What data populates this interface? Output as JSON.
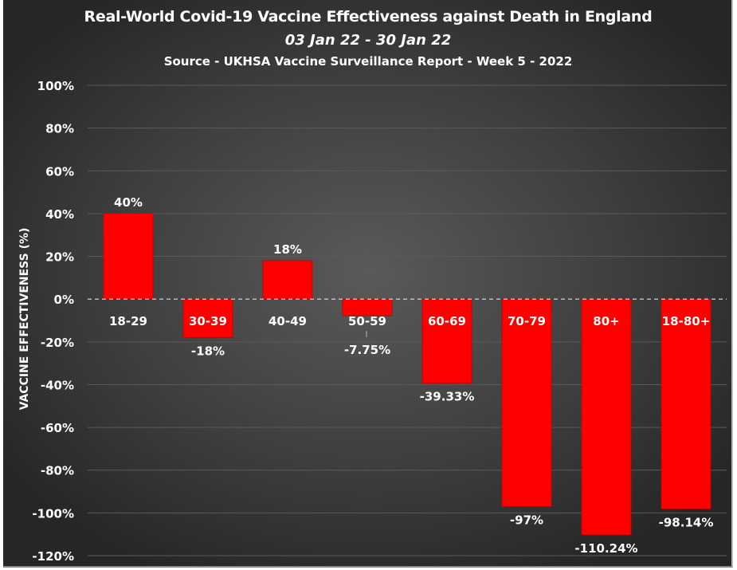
{
  "chart_data": {
    "type": "bar",
    "title": "Real-World Covid-19 Vaccine Effectiveness against Death in England",
    "subtitle": "03 Jan 22 - 30 Jan 22",
    "source": "Source - UKHSA Vaccine Surveillance Report - Week 5 - 2022",
    "xlabel": "",
    "ylabel": "VACCINE EFFECTIVENESS (%)",
    "ylim": [
      -120,
      100
    ],
    "yticks": [
      100,
      80,
      60,
      40,
      20,
      0,
      -20,
      -40,
      -60,
      -80,
      -100,
      -120
    ],
    "ytick_labels": [
      "100%",
      "80%",
      "60%",
      "40%",
      "20%",
      "0%",
      "-20%",
      "-40%",
      "-60%",
      "-80%",
      "-100%",
      "-120%"
    ],
    "grid": true,
    "categories": [
      "18-29",
      "30-39",
      "40-49",
      "50-59",
      "60-69",
      "70-79",
      "80+",
      "18-80+"
    ],
    "values": [
      40,
      -18,
      18,
      -7.75,
      -39.33,
      -97,
      -110.24,
      -98.14
    ],
    "data_labels": [
      "40%",
      "-18%",
      "18%",
      "-7.75%",
      "-39.33%",
      "-97%",
      "-110.24%",
      "-98.14%"
    ],
    "bar_color": "#ff0000",
    "background_color": "#3f3f3f"
  }
}
